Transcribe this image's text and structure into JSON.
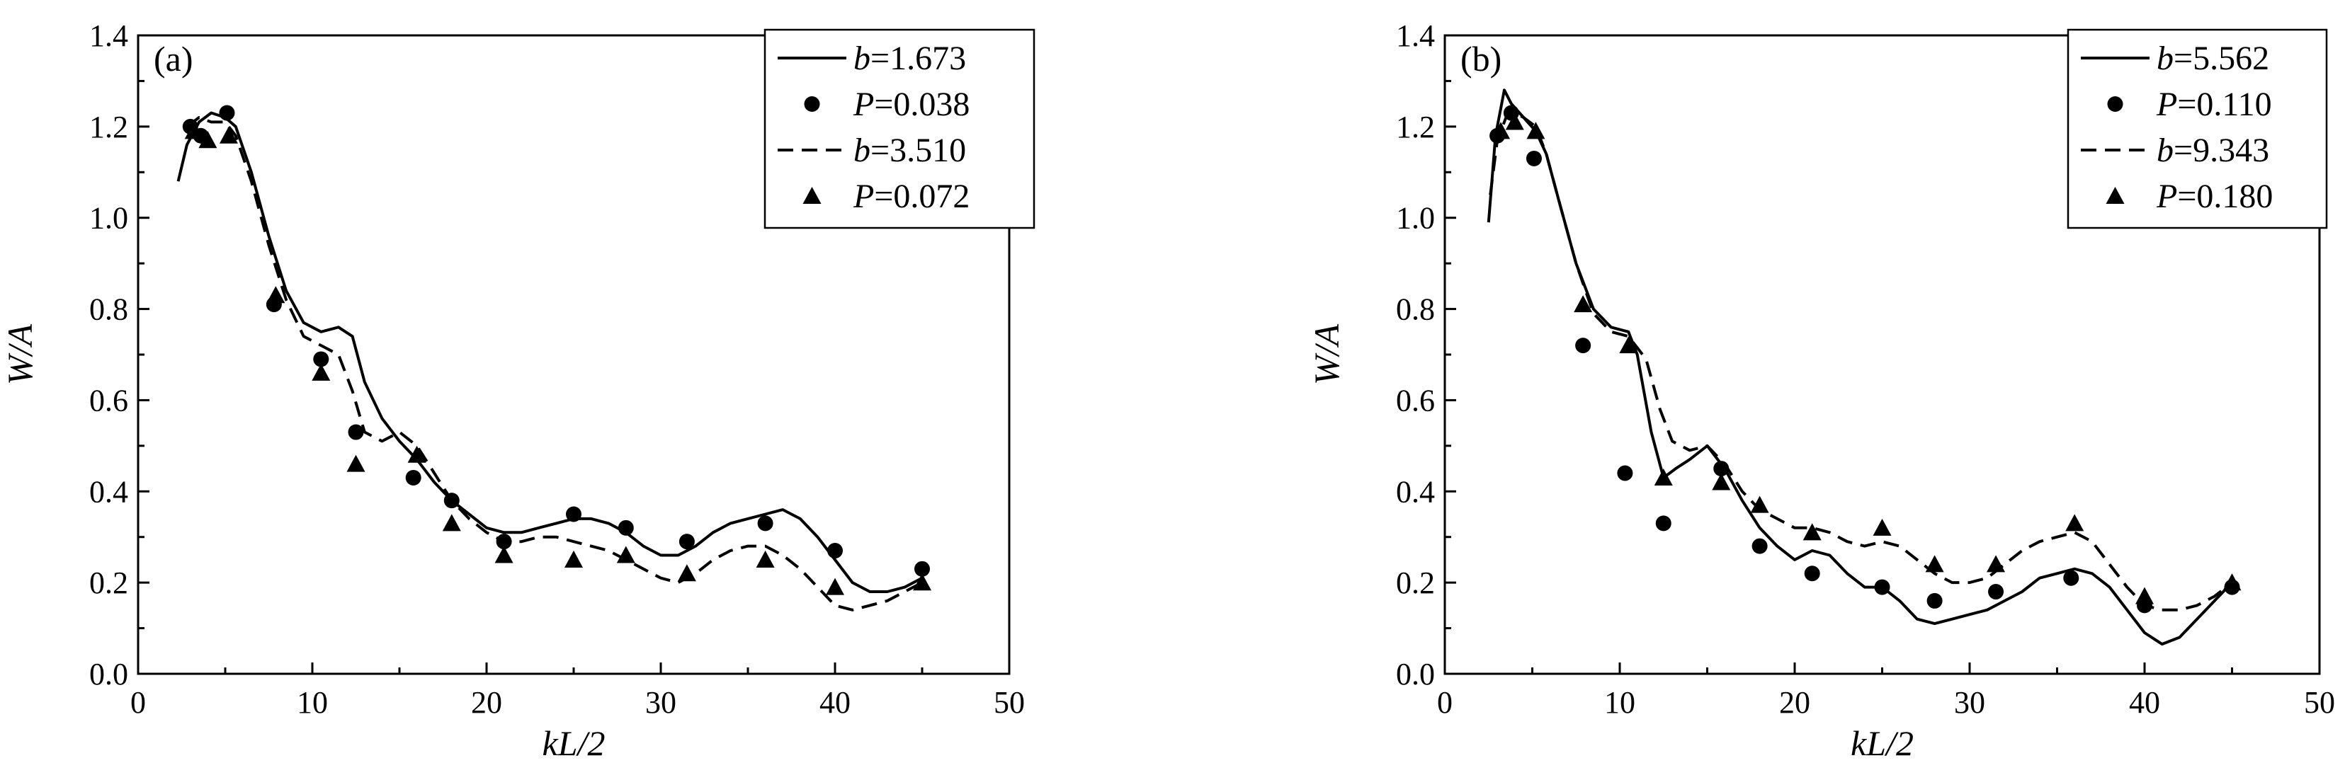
{
  "chart_data": [
    {
      "type": "line",
      "panel_label": "(a)",
      "xlabel": "kL/2",
      "ylabel": "W/A",
      "xlim": [
        0,
        50
      ],
      "ylim": [
        0,
        1.4
      ],
      "xticks": [
        "0",
        "10",
        "20",
        "30",
        "40",
        "50"
      ],
      "yticks": [
        "0.0",
        "0.2",
        "0.4",
        "0.6",
        "0.8",
        "1.0",
        "1.2",
        "1.4"
      ],
      "grid": false,
      "legend_position": "top-right",
      "series": [
        {
          "name": "b=1.673",
          "legend_var": "b",
          "legend_val": "=1.673",
          "style": "solid",
          "x": [
            2.3,
            2.8,
            3.5,
            4.2,
            5.0,
            5.6,
            6.5,
            7.5,
            8.5,
            9.5,
            10.5,
            11.5,
            12.3,
            13.0,
            14.0,
            15.0,
            16.0,
            17.0,
            18.0,
            19.0,
            20.0,
            21.0,
            22.0,
            23.0,
            24.0,
            25.0,
            26.0,
            27.0,
            28.0,
            29.0,
            30.0,
            31.0,
            32.0,
            33.0,
            34.0,
            35.0,
            36.0,
            37.0,
            38.0,
            39.0,
            40.0,
            41.0,
            42.0,
            43.0,
            44.0,
            45.0
          ],
          "y": [
            1.08,
            1.16,
            1.21,
            1.23,
            1.22,
            1.2,
            1.1,
            0.96,
            0.84,
            0.77,
            0.75,
            0.76,
            0.74,
            0.64,
            0.56,
            0.51,
            0.47,
            0.42,
            0.38,
            0.35,
            0.32,
            0.31,
            0.31,
            0.32,
            0.33,
            0.34,
            0.34,
            0.33,
            0.31,
            0.28,
            0.26,
            0.26,
            0.28,
            0.31,
            0.33,
            0.34,
            0.35,
            0.36,
            0.34,
            0.3,
            0.25,
            0.2,
            0.18,
            0.18,
            0.19,
            0.21
          ]
        },
        {
          "name": "P=0.038",
          "legend_var": "P",
          "legend_val": "=0.038",
          "style": "circle",
          "x": [
            3.0,
            3.6,
            5.1,
            7.8,
            10.5,
            12.5,
            15.8,
            18.0,
            21.0,
            25.0,
            28.0,
            31.5,
            36.0,
            40.0,
            45.0
          ],
          "y": [
            1.2,
            1.18,
            1.23,
            0.81,
            0.69,
            0.53,
            0.43,
            0.38,
            0.29,
            0.35,
            0.32,
            0.29,
            0.33,
            0.27,
            0.23
          ]
        },
        {
          "name": "b=3.510",
          "legend_var": "b",
          "legend_val": "=3.510",
          "style": "dashed",
          "x": [
            2.8,
            3.5,
            4.2,
            5.0,
            5.6,
            6.5,
            7.5,
            8.5,
            9.5,
            10.5,
            11.5,
            12.3,
            13.0,
            14.0,
            15.0,
            16.0,
            17.0,
            18.0,
            19.0,
            20.0,
            21.0,
            22.0,
            23.0,
            24.0,
            25.0,
            26.0,
            27.0,
            28.0,
            29.0,
            30.0,
            31.0,
            32.0,
            33.0,
            34.0,
            35.0,
            36.0,
            37.0,
            38.0,
            39.0,
            40.0,
            41.0,
            42.0,
            43.0,
            44.0,
            45.0
          ],
          "y": [
            1.2,
            1.22,
            1.21,
            1.21,
            1.18,
            1.08,
            0.94,
            0.82,
            0.74,
            0.72,
            0.7,
            0.62,
            0.53,
            0.51,
            0.53,
            0.5,
            0.44,
            0.38,
            0.34,
            0.31,
            0.29,
            0.29,
            0.3,
            0.3,
            0.29,
            0.28,
            0.27,
            0.25,
            0.23,
            0.21,
            0.2,
            0.22,
            0.25,
            0.27,
            0.28,
            0.28,
            0.26,
            0.23,
            0.19,
            0.15,
            0.14,
            0.15,
            0.16,
            0.18,
            0.2
          ]
        },
        {
          "name": "P=0.072",
          "legend_var": "P",
          "legend_val": "=0.072",
          "style": "triangle",
          "x": [
            3.2,
            4.0,
            5.2,
            7.9,
            10.5,
            12.5,
            16.0,
            18.0,
            21.0,
            25.0,
            28.0,
            31.5,
            36.0,
            40.0,
            45.0
          ],
          "y": [
            1.19,
            1.17,
            1.18,
            0.83,
            0.66,
            0.46,
            0.48,
            0.33,
            0.26,
            0.25,
            0.26,
            0.22,
            0.25,
            0.19,
            0.2
          ]
        }
      ]
    },
    {
      "type": "line",
      "panel_label": "(b)",
      "xlabel": "kL/2",
      "ylabel": "W/A",
      "xlim": [
        0,
        50
      ],
      "ylim": [
        0,
        1.4
      ],
      "xticks": [
        "0",
        "10",
        "20",
        "30",
        "40",
        "50"
      ],
      "yticks": [
        "0.0",
        "0.2",
        "0.4",
        "0.6",
        "0.8",
        "1.0",
        "1.2",
        "1.4"
      ],
      "grid": false,
      "legend_position": "top-right",
      "series": [
        {
          "name": "b=5.562",
          "legend_var": "b",
          "legend_val": "=5.562",
          "style": "solid",
          "x": [
            2.5,
            2.9,
            3.4,
            3.8,
            4.5,
            5.2,
            5.8,
            6.5,
            7.5,
            8.5,
            9.5,
            10.5,
            11.0,
            11.8,
            12.5,
            13.2,
            14.0,
            15.0,
            16.0,
            17.0,
            18.0,
            19.0,
            20.0,
            21.0,
            22.0,
            23.0,
            24.0,
            25.0,
            26.0,
            27.0,
            28.0,
            29.0,
            30.0,
            31.0,
            32.0,
            33.0,
            34.0,
            35.0,
            36.0,
            37.0,
            38.0,
            39.0,
            40.0,
            41.0,
            42.0,
            43.0,
            44.0,
            45.0
          ],
          "y": [
            0.99,
            1.18,
            1.28,
            1.25,
            1.22,
            1.19,
            1.14,
            1.04,
            0.9,
            0.8,
            0.76,
            0.75,
            0.7,
            0.53,
            0.43,
            0.45,
            0.47,
            0.5,
            0.45,
            0.38,
            0.32,
            0.28,
            0.25,
            0.27,
            0.26,
            0.22,
            0.19,
            0.19,
            0.16,
            0.12,
            0.11,
            0.12,
            0.13,
            0.14,
            0.16,
            0.18,
            0.21,
            0.22,
            0.23,
            0.22,
            0.19,
            0.14,
            0.09,
            0.065,
            0.08,
            0.12,
            0.16,
            0.2
          ]
        },
        {
          "name": "P=0.110",
          "legend_var": "P",
          "legend_val": "=0.110",
          "style": "circle",
          "x": [
            3.0,
            3.8,
            5.1,
            7.9,
            10.3,
            12.5,
            15.8,
            18.0,
            21.0,
            25.0,
            28.0,
            31.5,
            35.8,
            40.0,
            45.0
          ],
          "y": [
            1.18,
            1.23,
            1.13,
            0.72,
            0.44,
            0.33,
            0.45,
            0.28,
            0.22,
            0.19,
            0.16,
            0.18,
            0.21,
            0.15,
            0.19
          ]
        },
        {
          "name": "b=9.343",
          "legend_var": "b",
          "legend_val": "=9.343",
          "style": "dashed",
          "x": [
            2.6,
            3.0,
            3.5,
            4.0,
            4.5,
            5.2,
            5.8,
            6.5,
            7.5,
            8.5,
            9.5,
            10.5,
            11.5,
            12.3,
            13.0,
            14.0,
            15.0,
            16.0,
            17.0,
            18.0,
            19.0,
            20.0,
            21.0,
            22.0,
            23.0,
            24.0,
            25.0,
            26.0,
            27.0,
            28.0,
            29.0,
            30.0,
            31.0,
            32.0,
            33.0,
            34.0,
            35.0,
            36.0,
            37.0,
            38.0,
            39.0,
            40.0,
            41.0,
            42.0,
            43.0,
            44.0,
            45.0
          ],
          "y": [
            1.05,
            1.17,
            1.22,
            1.23,
            1.22,
            1.2,
            1.14,
            1.04,
            0.9,
            0.79,
            0.75,
            0.74,
            0.69,
            0.58,
            0.51,
            0.49,
            0.5,
            0.46,
            0.4,
            0.36,
            0.34,
            0.32,
            0.32,
            0.31,
            0.29,
            0.28,
            0.29,
            0.28,
            0.25,
            0.22,
            0.2,
            0.2,
            0.21,
            0.24,
            0.27,
            0.29,
            0.3,
            0.31,
            0.29,
            0.24,
            0.19,
            0.15,
            0.14,
            0.14,
            0.15,
            0.17,
            0.2
          ]
        },
        {
          "name": "P=0.180",
          "legend_var": "P",
          "legend_val": "=0.180",
          "style": "triangle",
          "x": [
            3.2,
            4.0,
            5.2,
            7.9,
            10.5,
            12.5,
            15.8,
            18.0,
            21.0,
            25.0,
            28.0,
            31.5,
            36.0,
            40.0,
            45.0
          ],
          "y": [
            1.19,
            1.21,
            1.19,
            0.81,
            0.72,
            0.43,
            0.42,
            0.37,
            0.31,
            0.32,
            0.24,
            0.24,
            0.33,
            0.17,
            0.2
          ]
        }
      ]
    }
  ]
}
